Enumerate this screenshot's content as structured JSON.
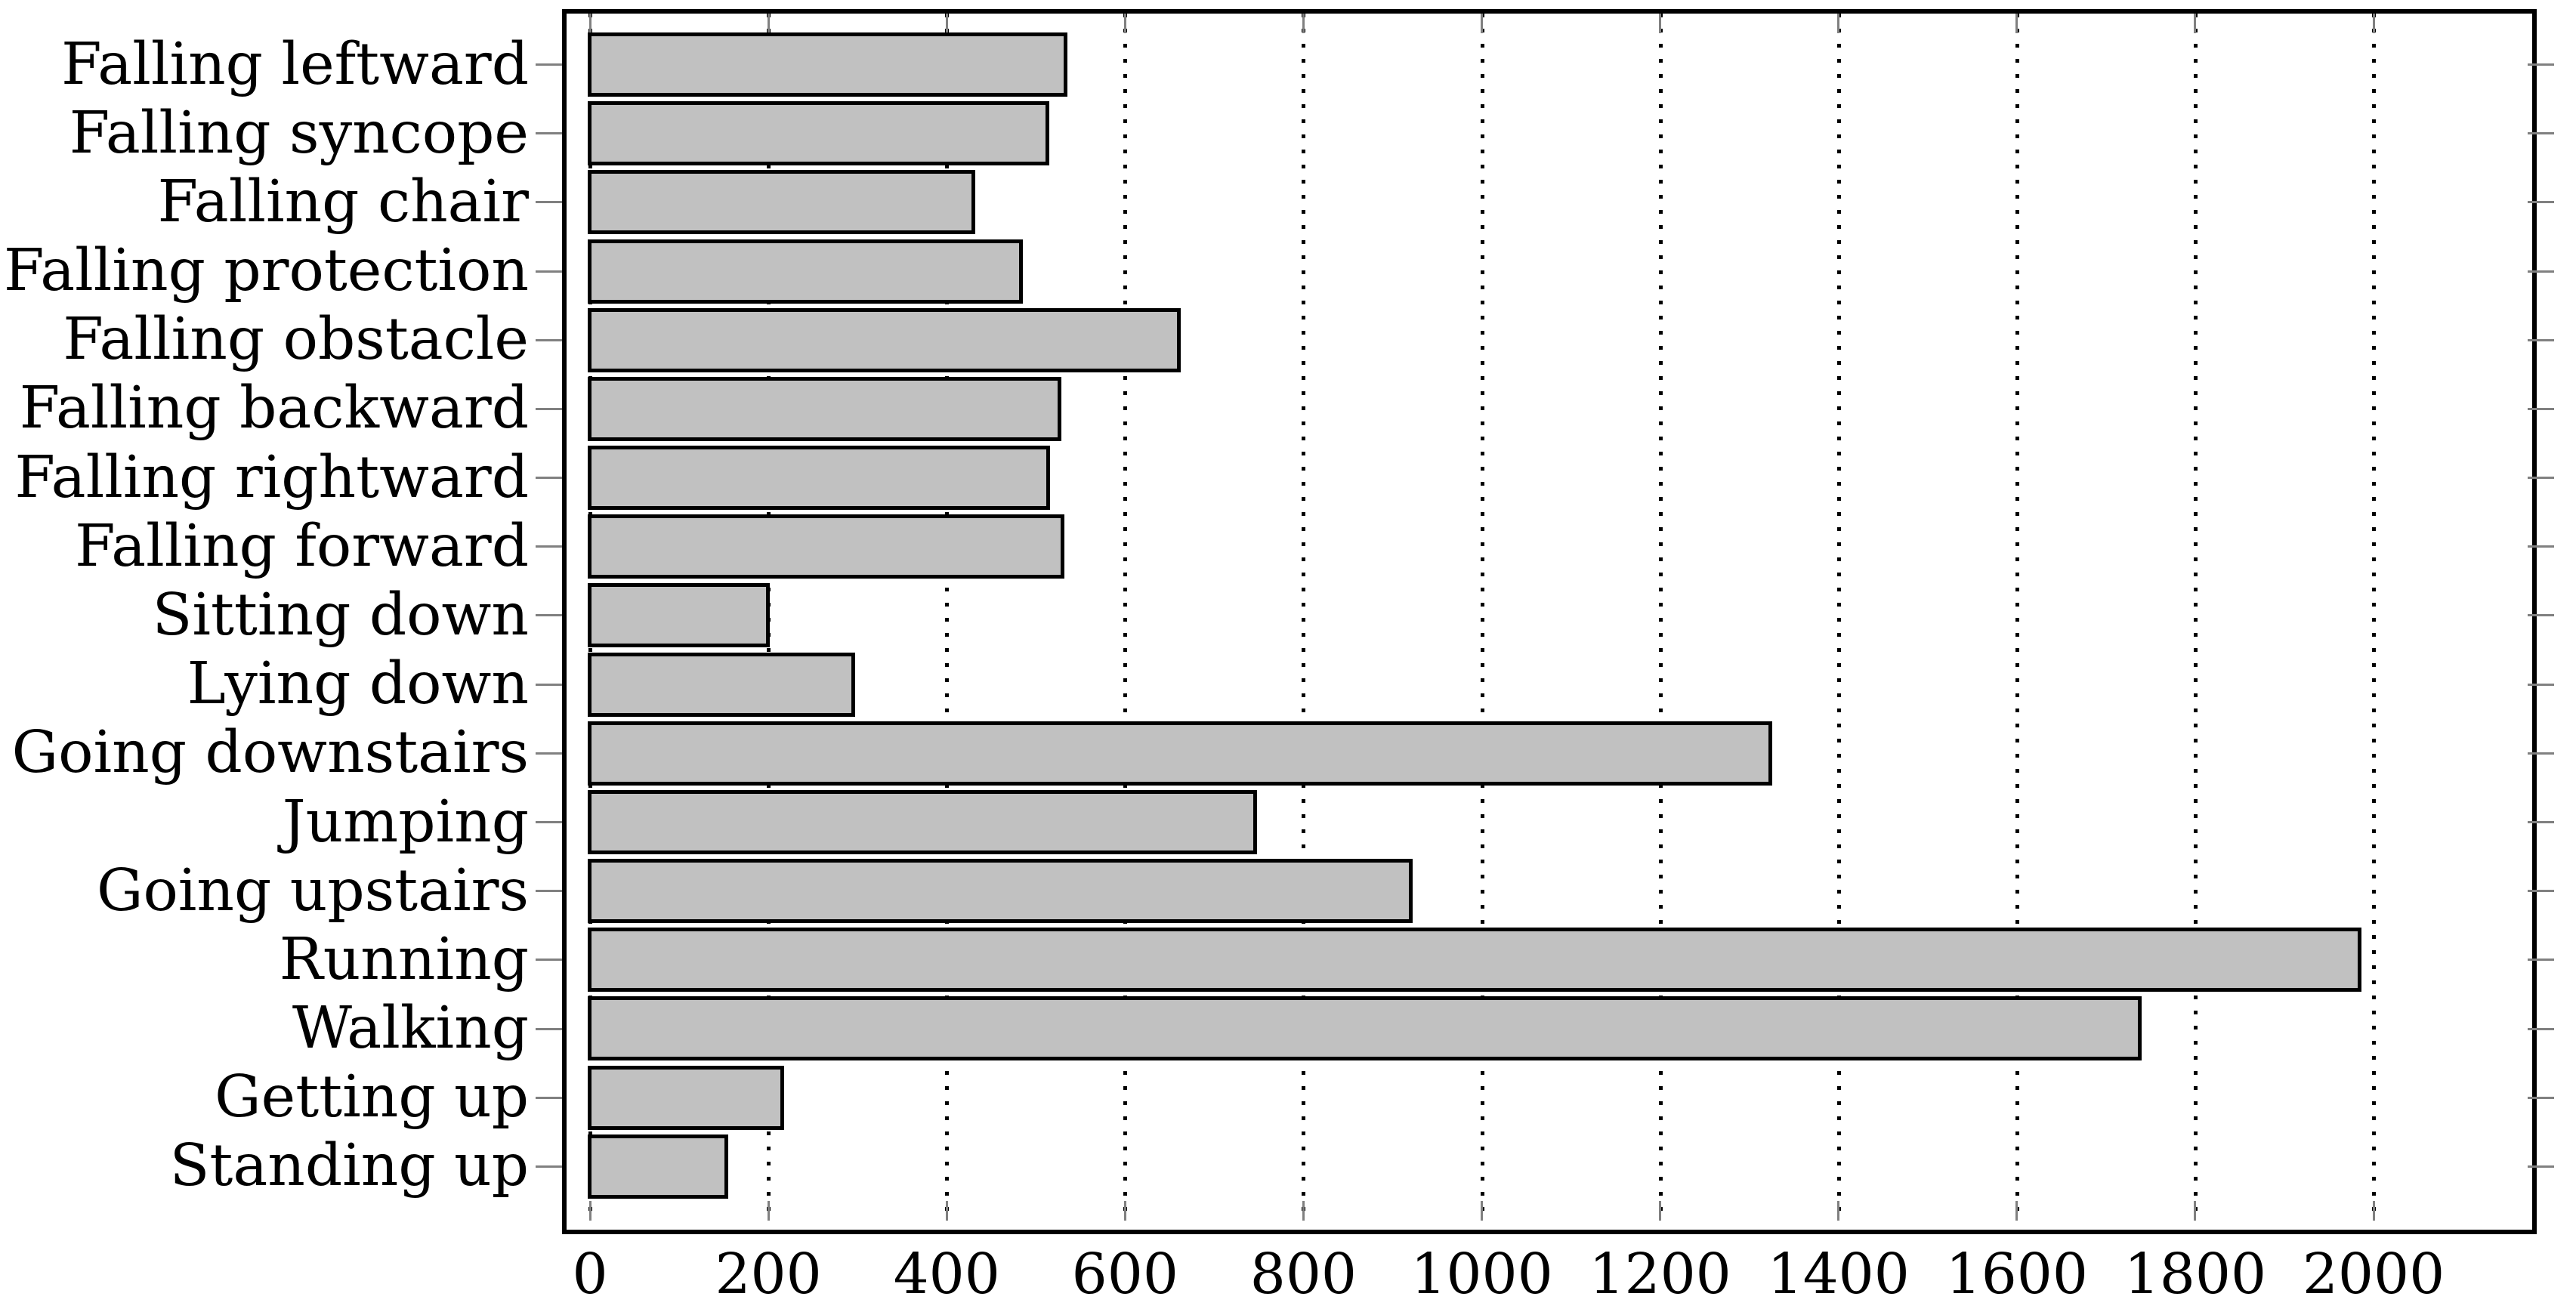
{
  "figure": {
    "background": "#ffffff"
  },
  "chart_data": {
    "type": "bar",
    "orientation": "horizontal",
    "title": "",
    "subtitle": "",
    "xlabel": "",
    "ylabel": "",
    "legend": "none",
    "grid": "vertical-dotted-major",
    "categories": [
      "Falling leftward",
      "Falling syncope",
      "Falling chair",
      "Falling protection",
      "Falling obstacle",
      "Falling backward",
      "Falling rightward",
      "Falling forward",
      "Sitting down",
      "Lying down",
      "Going downstairs",
      "Jumping",
      "Going upstairs",
      "Running",
      "Walking",
      "Getting up",
      "Standing up"
    ],
    "values": [
      534,
      513,
      430,
      484,
      661,
      527,
      514,
      530,
      200,
      296,
      1324,
      746,
      921,
      1985,
      1738,
      216,
      153
    ],
    "x_ticks": [
      0,
      200,
      400,
      600,
      800,
      1000,
      1200,
      1400,
      1600,
      1800,
      2000
    ],
    "x_tick_labels": [
      "0",
      "200",
      "400",
      "600",
      "800",
      "1000",
      "1200",
      "1400",
      "1600",
      "1800",
      "2000"
    ],
    "xlim": [
      -26,
      2168
    ],
    "colors": {
      "bar_fill": "#c1c1c1",
      "bar_outline": "#000000",
      "axis_frame": "#000000",
      "gridline": "#000000",
      "tick_mark": "#808080",
      "text": "#000000"
    }
  }
}
